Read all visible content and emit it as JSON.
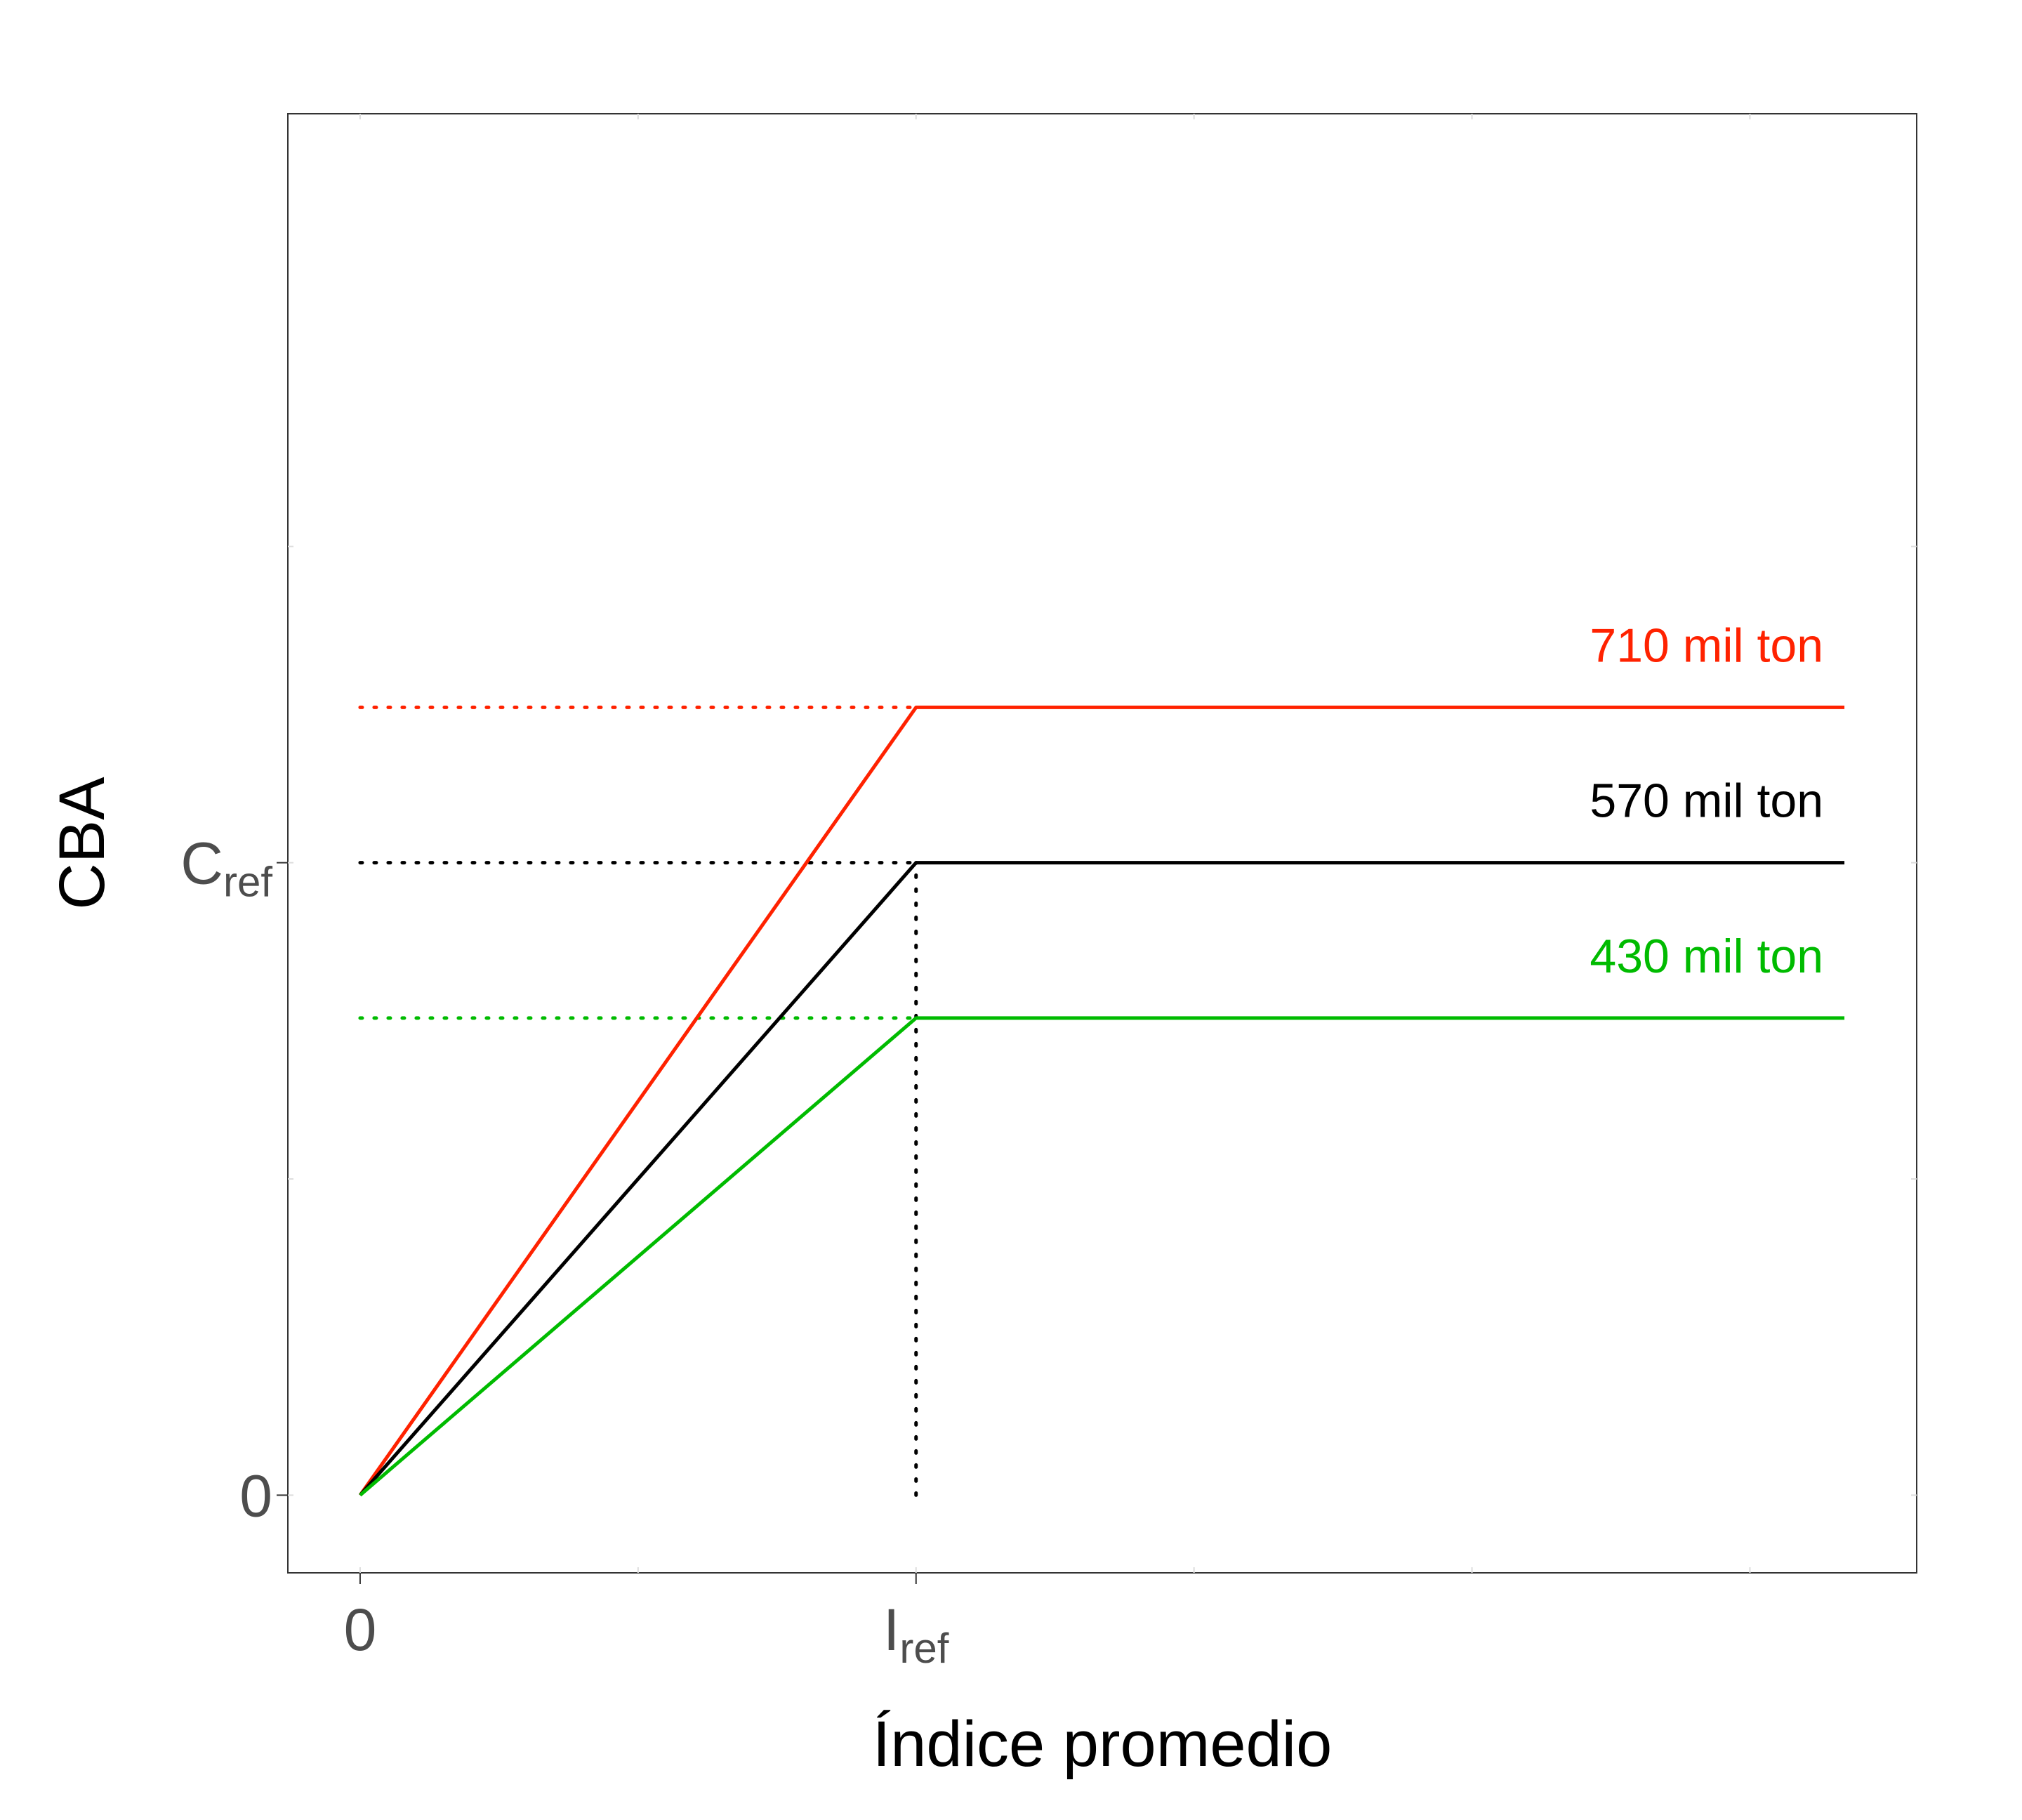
{
  "chart_data": {
    "type": "line",
    "xlabel": "Índice promedio",
    "ylabel": "CBA",
    "x_ticks": [
      {
        "value": 0,
        "text": "0",
        "sub": ""
      },
      {
        "value": 1,
        "text": "I",
        "sub": "ref"
      }
    ],
    "y_ticks": [
      {
        "value": 0,
        "text": "0",
        "sub": ""
      },
      {
        "value": 570,
        "text": "C",
        "sub": "ref"
      }
    ],
    "xlim": [
      -0.13,
      2.8
    ],
    "ylim": [
      -70,
      1245
    ],
    "grid": false,
    "reference_lines": {
      "vertical_x": 1,
      "vertical_from_y": 0,
      "vertical_to_y": 570,
      "vertical_color": "#000000"
    },
    "series": [
      {
        "key": "red",
        "label": "710 mil ton",
        "color": "#ff2200",
        "points": [
          [
            0,
            0
          ],
          [
            1,
            710
          ],
          [
            2.67,
            710
          ]
        ]
      },
      {
        "key": "black",
        "label": "570 mil ton",
        "color": "#000000",
        "points": [
          [
            0,
            0
          ],
          [
            1,
            570
          ],
          [
            2.67,
            570
          ]
        ]
      },
      {
        "key": "green",
        "label": "430 mil ton",
        "color": "#00bb00",
        "points": [
          [
            0,
            0
          ],
          [
            1,
            430
          ],
          [
            2.67,
            430
          ]
        ]
      }
    ]
  }
}
